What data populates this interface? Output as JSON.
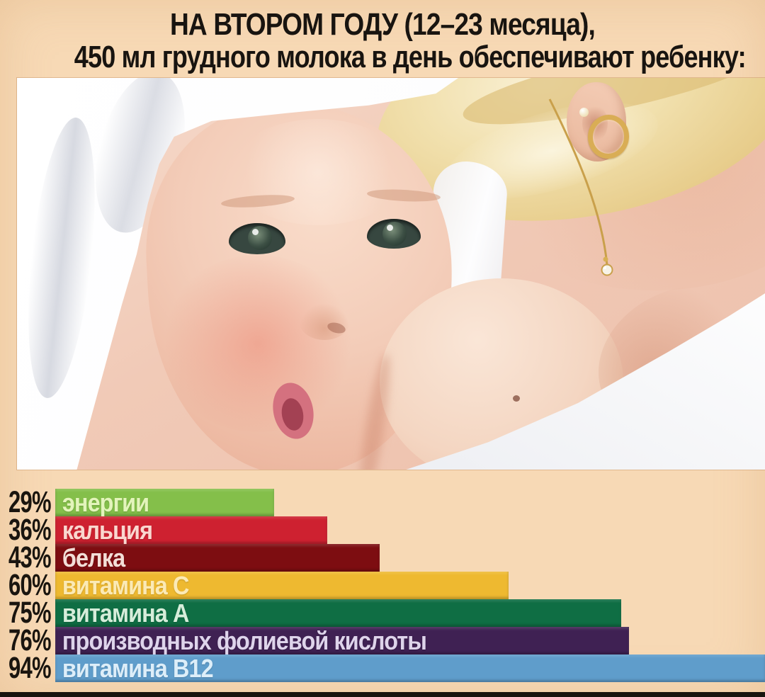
{
  "title": {
    "line1": "НА ВТОРОМ ГОДУ (12–23 месяца),",
    "line2": "450 мл грудного молока в день обеспечивают ребенку:"
  },
  "colors": {
    "background": "#f7d9b5",
    "title_text": "#181410",
    "percent_text": "#1a150f",
    "bottom_strip": "#18140f"
  },
  "chart_data": {
    "type": "bar",
    "orientation": "horizontal",
    "title": "НА ВТОРОМ ГОДУ (12–23 месяца), 450 мл грудного молока в день обеспечивают ребенку:",
    "unit": "%",
    "categories": [
      "энергии",
      "кальция",
      "белка",
      "витамина С",
      "витамина А",
      "производных фолиевой кислоты",
      "витамина В12"
    ],
    "values": [
      29,
      36,
      43,
      60,
      75,
      76,
      94
    ],
    "xlim": [
      0,
      94
    ],
    "grid": false,
    "legend": "none",
    "value_labels_position": "left-of-bar",
    "rows": [
      {
        "pct": "29%",
        "value": 29,
        "label": "энергии",
        "bar_color": "#84bf4a",
        "label_color": "#e3f4bb"
      },
      {
        "pct": "36%",
        "value": 36,
        "label": "кальция",
        "bar_color": "#ce2130",
        "label_color": "#fad7cf"
      },
      {
        "pct": "43%",
        "value": 43,
        "label": "белка",
        "bar_color": "#7d0d11",
        "label_color": "#f3ded7"
      },
      {
        "pct": "60%",
        "value": 60,
        "label": "витамина С",
        "bar_color": "#eeb930",
        "label_color": "#fbeab6"
      },
      {
        "pct": "75%",
        "value": 75,
        "label": "витамина А",
        "bar_color": "#0f6e44",
        "label_color": "#d6edda"
      },
      {
        "pct": "76%",
        "value": 76,
        "label": "производных фолиевой кислоты",
        "bar_color": "#3f2153",
        "label_color": "#ded4eb"
      },
      {
        "pct": "94%",
        "value": 94,
        "label": "витамина В12",
        "bar_color": "#5f9dcb",
        "label_color": "#ddeef9"
      }
    ]
  }
}
